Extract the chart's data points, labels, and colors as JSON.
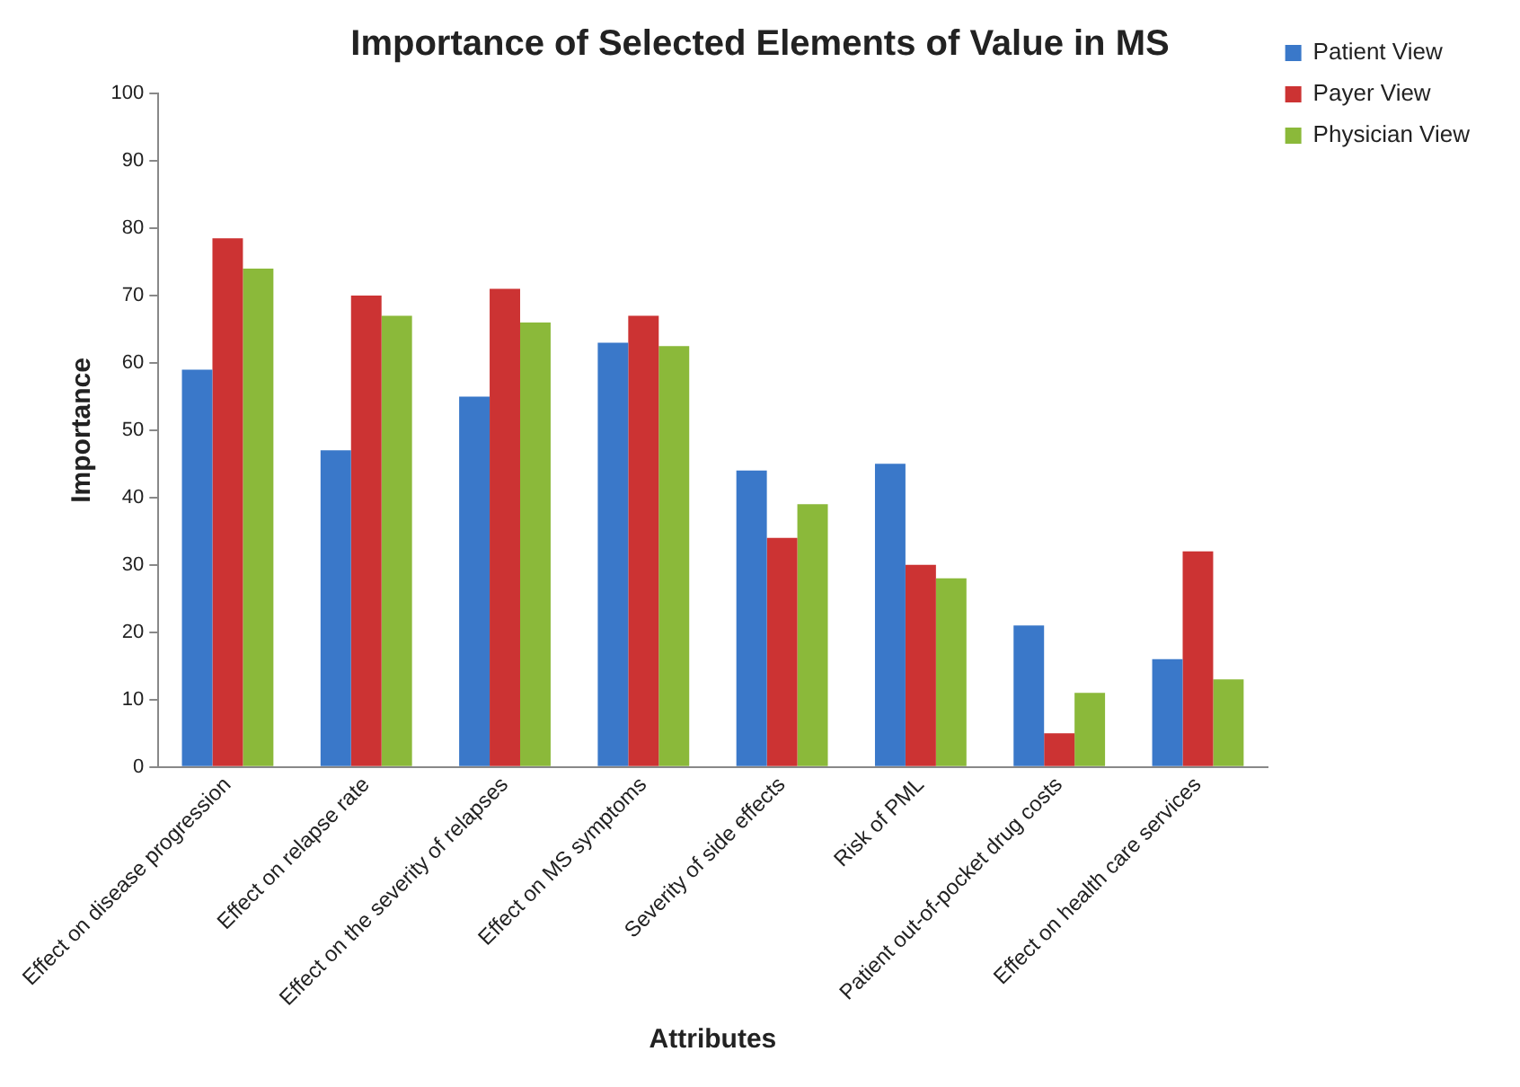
{
  "chart_data": {
    "type": "bar",
    "title": "Importance of Selected Elements of Value in MS",
    "xlabel": "Attributes",
    "ylabel": "Importance",
    "categories": [
      "Effect on disease progression",
      "Effect on relapse rate",
      "Effect on the severity of relapses",
      "Effect on MS symptoms",
      "Severity of side effects",
      "Risk of PML",
      "Patient out-of-pocket drug costs",
      "Effect on health care services"
    ],
    "series": [
      {
        "name": "Patient View",
        "color": "#3a78c9",
        "values": [
          59,
          47,
          55,
          63,
          44,
          45,
          21,
          16
        ]
      },
      {
        "name": "Payer View",
        "color": "#cc3333",
        "values": [
          78.5,
          70,
          71,
          67,
          34,
          30,
          5,
          32
        ]
      },
      {
        "name": "Physician View",
        "color": "#8bb93a",
        "values": [
          74,
          67,
          66,
          62.5,
          39,
          28,
          11,
          13
        ]
      }
    ],
    "ylim": [
      0,
      100
    ],
    "yticks": [
      0,
      10,
      20,
      30,
      40,
      50,
      60,
      70,
      80,
      90,
      100
    ],
    "grid": false,
    "legend": "top right"
  }
}
